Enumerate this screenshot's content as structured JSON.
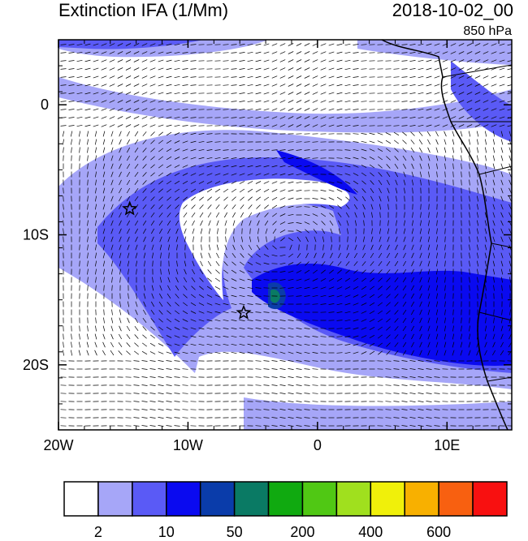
{
  "title": "Extinction IFA (1/Mm)",
  "datetime": "2018-10-02_00",
  "level": "850 hPa",
  "axes": {
    "x_ticks": [
      {
        "value": -20,
        "label": "20W"
      },
      {
        "value": -10,
        "label": "10W"
      },
      {
        "value": 0,
        "label": "0"
      },
      {
        "value": 10,
        "label": "10E"
      }
    ],
    "y_ticks": [
      {
        "value": 0,
        "label": "0"
      },
      {
        "value": -10,
        "label": "10S"
      },
      {
        "value": -20,
        "label": "20S"
      }
    ],
    "lon_range": [
      -20,
      15
    ],
    "lat_range": [
      -25,
      5
    ]
  },
  "markers": [
    {
      "name": "star",
      "lon": -14.5,
      "lat": -8.0
    },
    {
      "name": "star",
      "lon": -5.7,
      "lat": -16.0
    }
  ],
  "colorbar": {
    "colors": [
      "#ffffff",
      "#a6a6f8",
      "#5a5af6",
      "#0a0af0",
      "#0a3caa",
      "#0a7a64",
      "#10aa10",
      "#50c814",
      "#a0e01e",
      "#f0f00a",
      "#f8b000",
      "#f86010",
      "#f81010"
    ],
    "labels": [
      {
        "text": "2",
        "index": 1
      },
      {
        "text": "10",
        "index": 3
      },
      {
        "text": "50",
        "index": 5
      },
      {
        "text": "200",
        "index": 7
      },
      {
        "text": "400",
        "index": 9
      },
      {
        "text": "600",
        "index": 11
      }
    ]
  }
}
